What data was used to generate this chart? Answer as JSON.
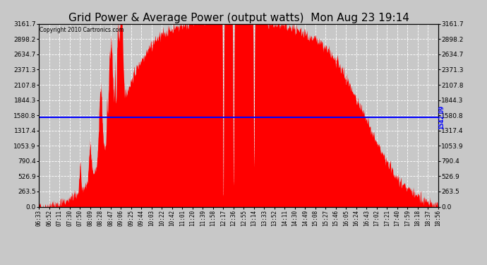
{
  "title": "Grid Power & Average Power (output watts)  Mon Aug 23 19:14",
  "copyright": "Copyright 2010 Cartronics.com",
  "avg_power": 1542.09,
  "ymax": 3161.7,
  "yticks": [
    0.0,
    263.5,
    526.9,
    790.4,
    1053.9,
    1317.4,
    1580.8,
    1844.3,
    2107.8,
    2371.3,
    2634.7,
    2898.2,
    3161.7
  ],
  "fill_color": "#FF0000",
  "avg_line_color": "#0000FF",
  "plot_bg_color": "#C8C8C8",
  "grid_color": "#FFFFFF",
  "title_fontsize": 11,
  "x_labels": [
    "06:33",
    "06:52",
    "07:11",
    "07:30",
    "07:50",
    "08:09",
    "08:28",
    "08:47",
    "09:06",
    "09:25",
    "09:44",
    "10:03",
    "10:22",
    "10:42",
    "11:01",
    "11:20",
    "11:39",
    "11:58",
    "12:17",
    "12:36",
    "12:55",
    "13:14",
    "13:33",
    "13:52",
    "14:11",
    "14:30",
    "14:49",
    "15:08",
    "15:27",
    "15:46",
    "16:05",
    "16:24",
    "16:43",
    "17:02",
    "17:21",
    "17:40",
    "17:59",
    "18:18",
    "18:37",
    "18:56"
  ]
}
